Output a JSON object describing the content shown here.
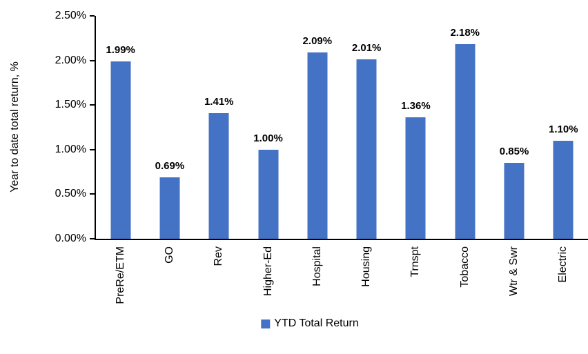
{
  "chart_data": {
    "type": "bar",
    "categories": [
      "PreRe/ETM",
      "GO",
      "Rev",
      "Higher-Ed",
      "Hospital",
      "Housing",
      "Trnspt",
      "Tobacco",
      "Wtr & Swr",
      "Electric"
    ],
    "values": [
      1.99,
      0.69,
      1.41,
      1.0,
      2.09,
      2.01,
      1.36,
      2.18,
      0.85,
      1.1
    ],
    "data_labels": [
      "1.99%",
      "0.69%",
      "1.41%",
      "1.00%",
      "2.09%",
      "2.01%",
      "1.36%",
      "2.18%",
      "0.85%",
      "1.10%"
    ],
    "ylabel": "Year to date total return, %",
    "ylim": [
      0,
      2.5
    ],
    "y_ticks": [
      "0.00%",
      "0.50%",
      "1.00%",
      "1.50%",
      "2.00%",
      "2.50%"
    ],
    "grid": "off",
    "bar_color": "#4472C4",
    "legend": {
      "position": "bottom",
      "entries": [
        "YTD Total Return"
      ]
    }
  }
}
